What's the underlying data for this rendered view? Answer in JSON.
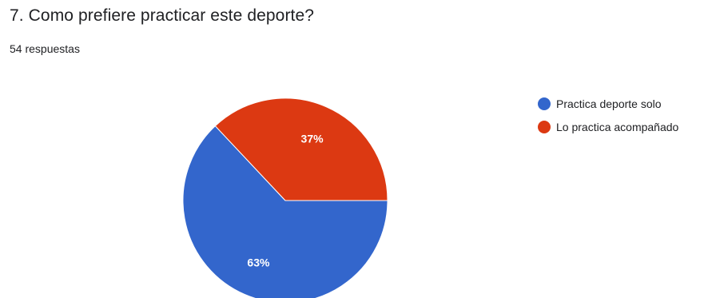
{
  "header": {
    "title": "7. Como prefiere practicar este deporte?",
    "response_count": "54 respuestas"
  },
  "chart_data": {
    "type": "pie",
    "title": "7. Como prefiere practicar este deporte?",
    "categories": [
      "Practica deporte solo",
      "Lo practica acompañado"
    ],
    "values": [
      63,
      37
    ],
    "labels": [
      "63%",
      "37%"
    ],
    "colors": [
      "#3366cc",
      "#dc3912"
    ],
    "legend": "right"
  }
}
